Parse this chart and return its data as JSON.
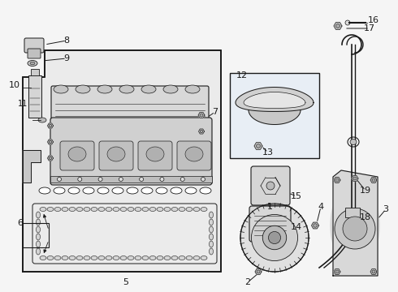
{
  "bg_color": "#f5f5f5",
  "line_color": "#1a1a1a",
  "fig_width": 4.9,
  "fig_height": 3.6,
  "dpi": 100
}
